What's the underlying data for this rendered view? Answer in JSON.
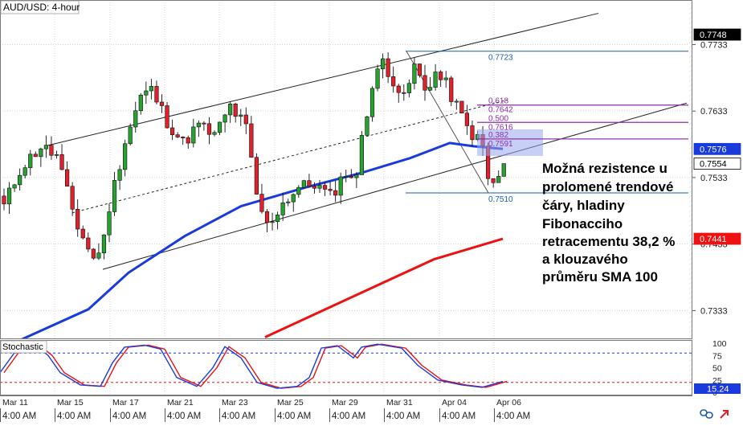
{
  "chart_data": [
    {
      "type": "candlestick",
      "title": "AUD/USD: 4-hour",
      "price_labels": [
        "0.7748",
        "0.7733",
        "0.7633",
        "0.7576",
        "0.7554",
        "0.7533",
        "0.7441",
        "0.7433",
        "0.7333"
      ],
      "ylim": [
        0.729,
        0.78
      ],
      "grid": true,
      "x_labels": [
        "Mar 11",
        "Mar 15",
        "Mar 17",
        "Mar 21",
        "Mar 23",
        "Mar 25",
        "Mar 29",
        "Mar 31",
        "Apr 04",
        "Apr 06"
      ],
      "x_sublabels": [
        "4:00 AM",
        "4:00 AM",
        "4:00 AM",
        "4:00 AM",
        "4:00 AM",
        "4:00 AM",
        "4:00 AM",
        "4:00 AM",
        "4:00 AM",
        "4:00 AM"
      ],
      "price_badges": [
        {
          "value": "0.7748",
          "bg": "#000000",
          "fg": "#ffffff"
        },
        {
          "value": "0.7576",
          "bg": "#1a3bdc",
          "fg": "#ffffff"
        },
        {
          "value": "0.7554",
          "bg": "#ffffff",
          "fg": "#000000"
        },
        {
          "value": "0.7441",
          "bg": "#ee1111",
          "fg": "#ffffff"
        }
      ],
      "fibonacci": {
        "high": 0.7723,
        "low": 0.751,
        "levels": [
          {
            "label": "0.618",
            "value": 0.7642
          },
          {
            "label": "0.7642",
            "value": 0.7642
          },
          {
            "label": "0.500",
            "value": 0.7616
          },
          {
            "label": "0.7616",
            "value": 0.7616
          },
          {
            "label": "0.382",
            "value": 0.7591
          },
          {
            "label": "0.7591",
            "value": 0.7591
          }
        ],
        "high_label": "0.7723",
        "low_label": "0.7510",
        "color": "#1a5fa6",
        "level_color": "#8b2fa8"
      },
      "sma100": {
        "color": "#1a3bdc",
        "last": 0.7576
      },
      "sma200": {
        "color": "#ee1111",
        "last": 0.7441
      },
      "colors": {
        "up": "#27a22f",
        "down": "#e0202a",
        "annotation": "#000000"
      },
      "annotation": [
        "Možná rezistence u",
        "prolomené trendové",
        "čáry, hladiny",
        "Fibonacciho",
        "retracementu 38,2 %",
        "a klouzavého",
        "průměru SMA 100"
      ]
    },
    {
      "type": "line",
      "title": "Stochastic",
      "ylim": [
        0,
        100
      ],
      "tick_labels": [
        "100",
        "75",
        "50",
        "25",
        "0"
      ],
      "levels": [
        80,
        20
      ],
      "current_value": "15.24",
      "series_colors": [
        "#1a3bdc",
        "#ee1111"
      ]
    }
  ]
}
